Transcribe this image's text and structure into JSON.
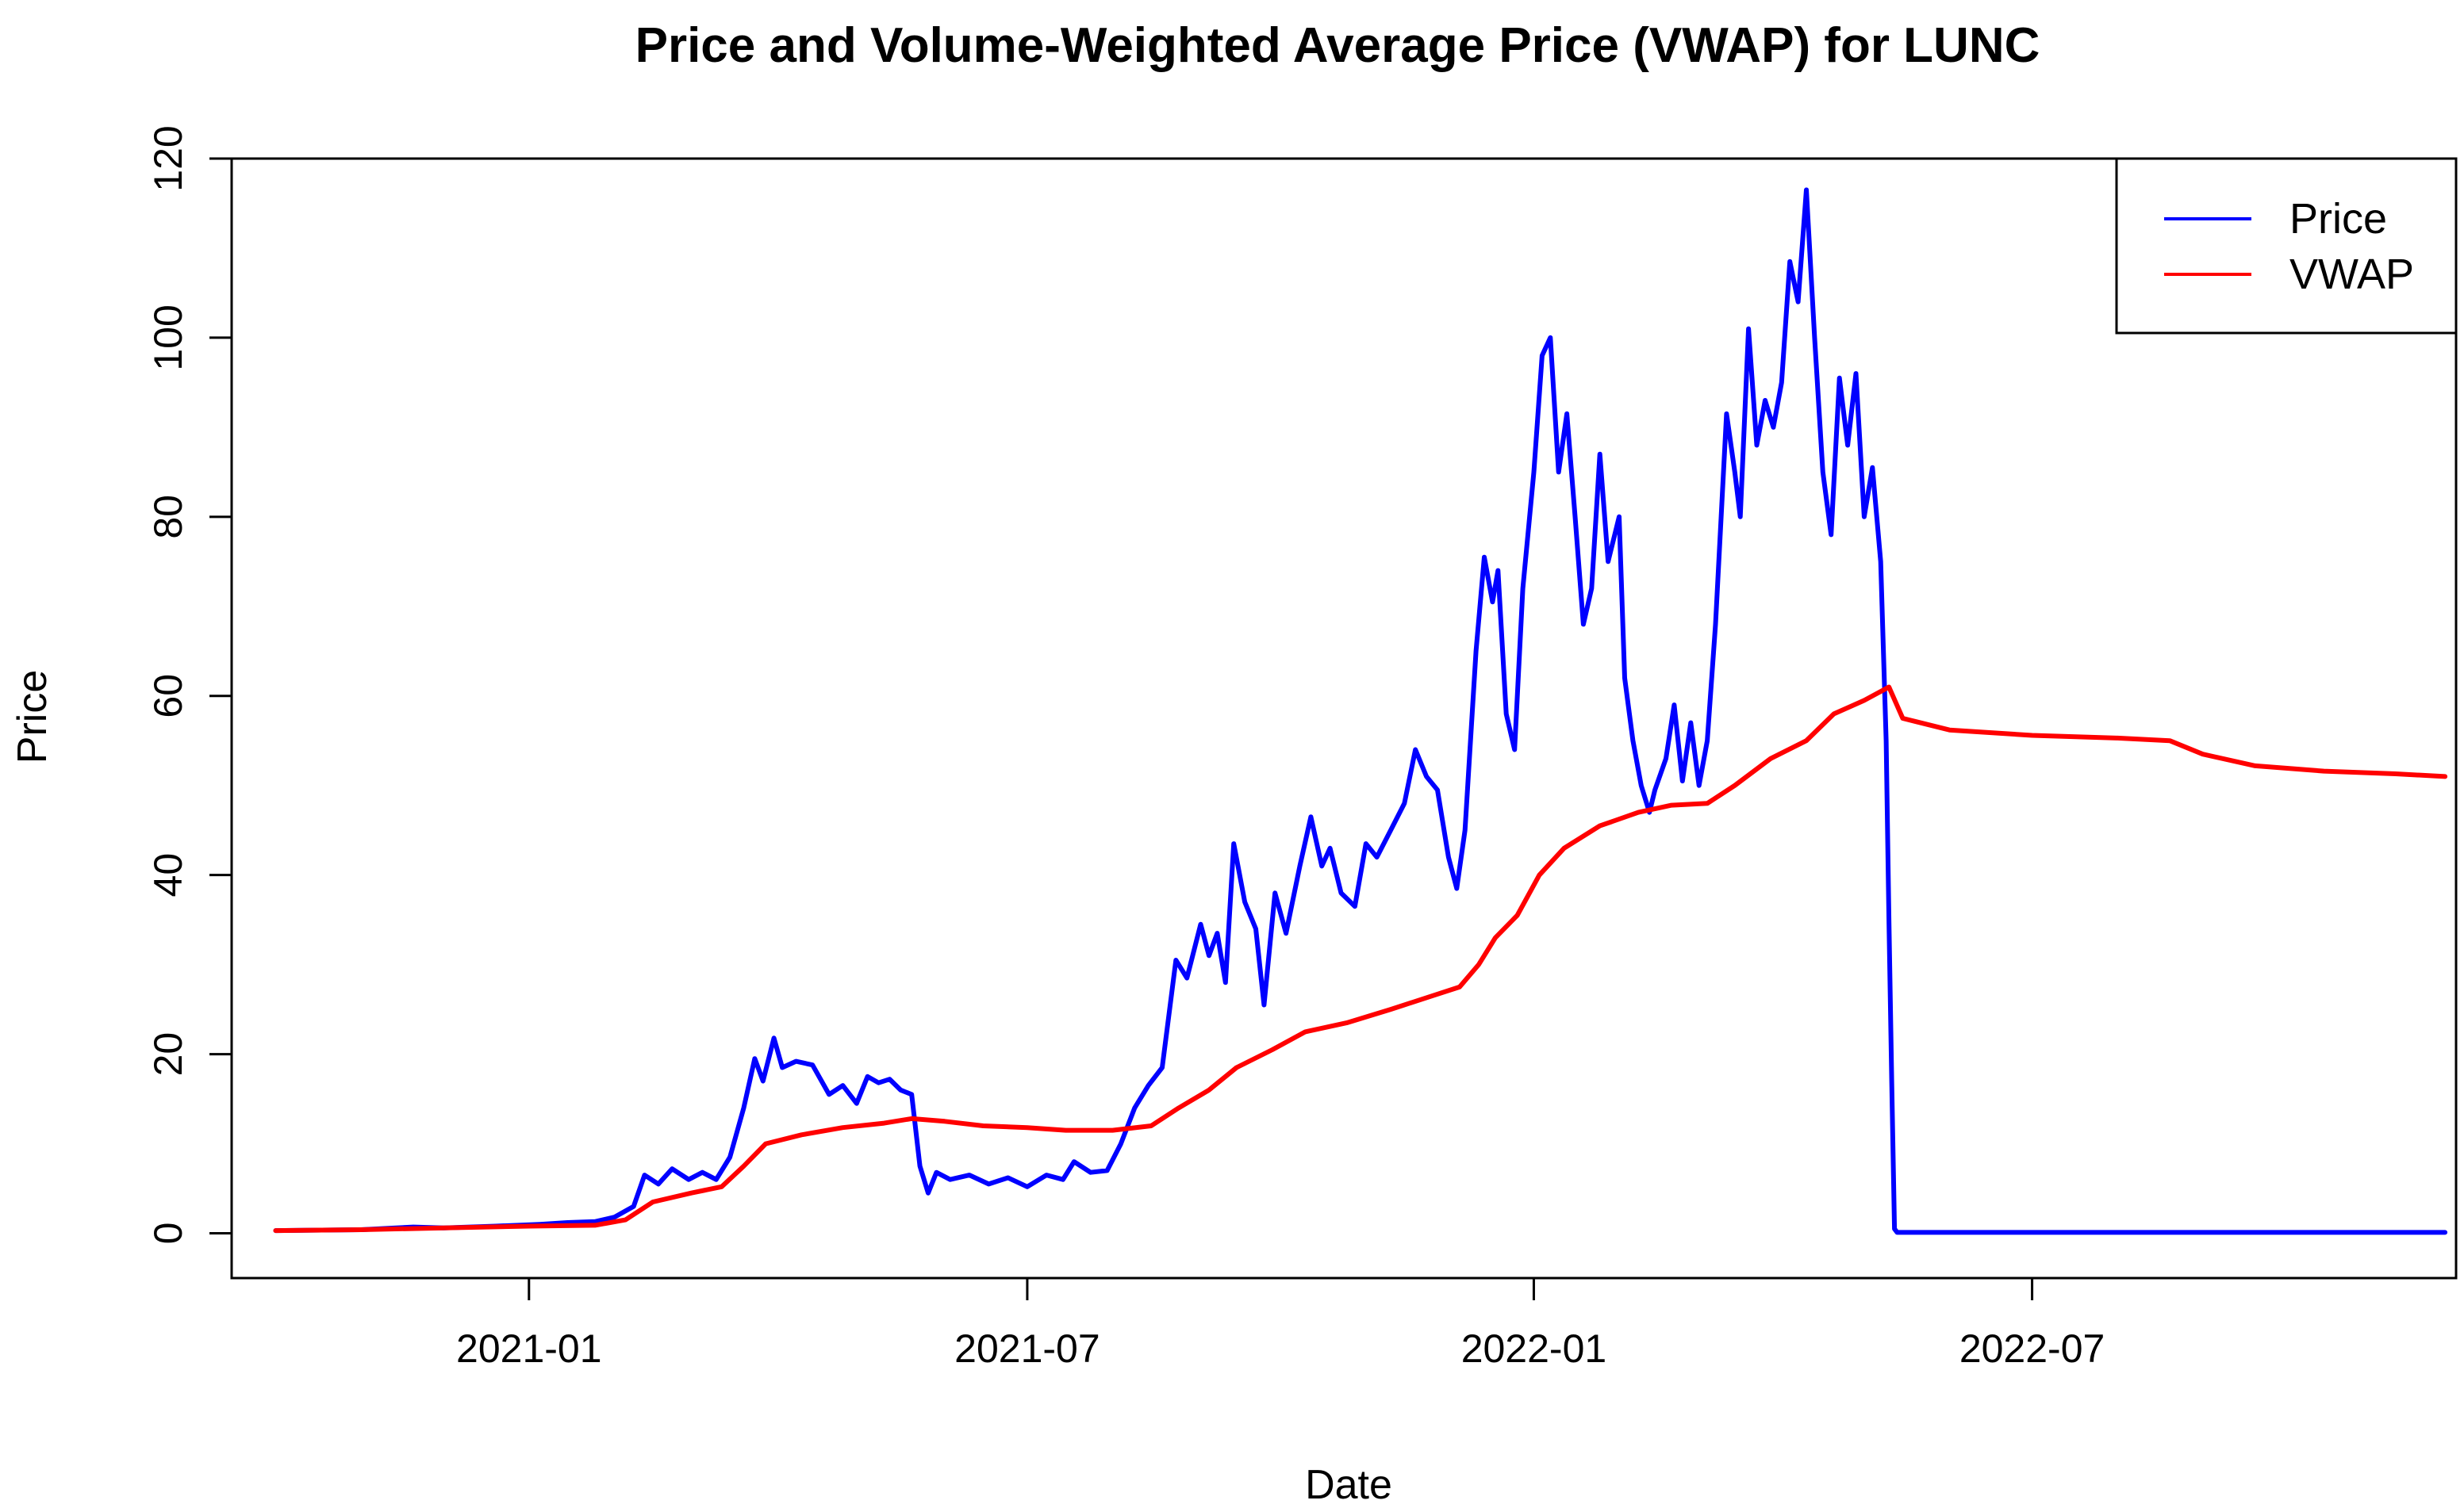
{
  "chart_data": {
    "type": "line",
    "title": "Price and Volume-Weighted Average Price (VWAP) for LUNC",
    "xlabel": "Date",
    "ylabel": "Price",
    "xlim": [
      "2020-09-15",
      "2022-12-02"
    ],
    "ylim": [
      -5,
      120
    ],
    "x_ticks": [
      {
        "date": "2021-01-01",
        "label": "2021-01"
      },
      {
        "date": "2021-07-01",
        "label": "2021-07"
      },
      {
        "date": "2022-01-01",
        "label": "2022-01"
      },
      {
        "date": "2022-07-01",
        "label": "2022-07"
      }
    ],
    "y_ticks": [
      0,
      20,
      40,
      60,
      80,
      100,
      120
    ],
    "legend": {
      "position": "top-right",
      "entries": [
        "Price",
        "VWAP"
      ]
    },
    "series": [
      {
        "name": "Price",
        "color": "#0000ff",
        "points": [
          [
            "2020-10-01",
            0.3
          ],
          [
            "2020-11-01",
            0.4
          ],
          [
            "2020-11-20",
            0.7
          ],
          [
            "2020-12-01",
            0.6
          ],
          [
            "2020-12-20",
            0.8
          ],
          [
            "2021-01-05",
            1.0
          ],
          [
            "2021-01-15",
            1.2
          ],
          [
            "2021-01-25",
            1.3
          ],
          [
            "2021-02-01",
            1.8
          ],
          [
            "2021-02-08",
            3.0
          ],
          [
            "2021-02-12",
            6.5
          ],
          [
            "2021-02-17",
            5.5
          ],
          [
            "2021-02-22",
            7.2
          ],
          [
            "2021-02-28",
            6.0
          ],
          [
            "2021-03-05",
            6.8
          ],
          [
            "2021-03-10",
            6.0
          ],
          [
            "2021-03-15",
            8.5
          ],
          [
            "2021-03-20",
            14.0
          ],
          [
            "2021-03-24",
            19.5
          ],
          [
            "2021-03-27",
            17.0
          ],
          [
            "2021-03-31",
            21.8
          ],
          [
            "2021-04-03",
            18.5
          ],
          [
            "2021-04-08",
            19.2
          ],
          [
            "2021-04-14",
            18.8
          ],
          [
            "2021-04-20",
            15.5
          ],
          [
            "2021-04-25",
            16.5
          ],
          [
            "2021-04-30",
            14.5
          ],
          [
            "2021-05-04",
            17.5
          ],
          [
            "2021-05-08",
            16.8
          ],
          [
            "2021-05-12",
            17.2
          ],
          [
            "2021-05-16",
            16.0
          ],
          [
            "2021-05-20",
            15.5
          ],
          [
            "2021-05-23",
            7.5
          ],
          [
            "2021-05-26",
            4.5
          ],
          [
            "2021-05-29",
            6.8
          ],
          [
            "2021-06-03",
            6.0
          ],
          [
            "2021-06-10",
            6.5
          ],
          [
            "2021-06-17",
            5.5
          ],
          [
            "2021-06-24",
            6.2
          ],
          [
            "2021-07-01",
            5.2
          ],
          [
            "2021-07-08",
            6.5
          ],
          [
            "2021-07-14",
            6.0
          ],
          [
            "2021-07-18",
            8.0
          ],
          [
            "2021-07-24",
            6.8
          ],
          [
            "2021-07-30",
            7.0
          ],
          [
            "2021-08-04",
            10.0
          ],
          [
            "2021-08-09",
            14.0
          ],
          [
            "2021-08-14",
            16.5
          ],
          [
            "2021-08-19",
            18.5
          ],
          [
            "2021-08-24",
            30.5
          ],
          [
            "2021-08-28",
            28.5
          ],
          [
            "2021-09-02",
            34.5
          ],
          [
            "2021-09-05",
            31.0
          ],
          [
            "2021-09-08",
            33.5
          ],
          [
            "2021-09-11",
            28.0
          ],
          [
            "2021-09-14",
            43.5
          ],
          [
            "2021-09-18",
            37.0
          ],
          [
            "2021-09-22",
            34.0
          ],
          [
            "2021-09-25",
            25.5
          ],
          [
            "2021-09-29",
            38.0
          ],
          [
            "2021-10-03",
            33.5
          ],
          [
            "2021-10-08",
            41.0
          ],
          [
            "2021-10-12",
            46.5
          ],
          [
            "2021-10-16",
            41.0
          ],
          [
            "2021-10-19",
            43.0
          ],
          [
            "2021-10-23",
            38.0
          ],
          [
            "2021-10-28",
            36.5
          ],
          [
            "2021-11-01",
            43.5
          ],
          [
            "2021-11-05",
            42.0
          ],
          [
            "2021-11-10",
            45.0
          ],
          [
            "2021-11-15",
            48.0
          ],
          [
            "2021-11-19",
            54.0
          ],
          [
            "2021-11-23",
            51.0
          ],
          [
            "2021-11-27",
            49.5
          ],
          [
            "2021-12-01",
            42.0
          ],
          [
            "2021-12-04",
            38.5
          ],
          [
            "2021-12-07",
            45.0
          ],
          [
            "2021-12-11",
            65.0
          ],
          [
            "2021-12-14",
            75.5
          ],
          [
            "2021-12-17",
            70.5
          ],
          [
            "2021-12-19",
            74.0
          ],
          [
            "2021-12-22",
            58.0
          ],
          [
            "2021-12-25",
            54.0
          ],
          [
            "2021-12-28",
            72.0
          ],
          [
            "2022-01-01",
            85.0
          ],
          [
            "2022-01-04",
            98.0
          ],
          [
            "2022-01-07",
            100.0
          ],
          [
            "2022-01-10",
            85.0
          ],
          [
            "2022-01-13",
            91.5
          ],
          [
            "2022-01-16",
            80.0
          ],
          [
            "2022-01-19",
            68.0
          ],
          [
            "2022-01-22",
            72.0
          ],
          [
            "2022-01-25",
            87.0
          ],
          [
            "2022-01-28",
            75.0
          ],
          [
            "2022-02-01",
            80.0
          ],
          [
            "2022-02-03",
            62.0
          ],
          [
            "2022-02-06",
            55.0
          ],
          [
            "2022-02-09",
            50.0
          ],
          [
            "2022-02-12",
            47.0
          ],
          [
            "2022-02-14",
            49.5
          ],
          [
            "2022-02-18",
            53.0
          ],
          [
            "2022-02-21",
            59.0
          ],
          [
            "2022-02-24",
            50.5
          ],
          [
            "2022-02-27",
            57.0
          ],
          [
            "2022-03-02",
            50.0
          ],
          [
            "2022-03-05",
            55.0
          ],
          [
            "2022-03-08",
            68.0
          ],
          [
            "2022-03-12",
            91.5
          ],
          [
            "2022-03-15",
            85.0
          ],
          [
            "2022-03-17",
            80.0
          ],
          [
            "2022-03-20",
            101.0
          ],
          [
            "2022-03-23",
            88.0
          ],
          [
            "2022-03-26",
            93.0
          ],
          [
            "2022-03-29",
            90.0
          ],
          [
            "2022-04-01",
            95.0
          ],
          [
            "2022-04-04",
            108.5
          ],
          [
            "2022-04-07",
            104.0
          ],
          [
            "2022-04-10",
            116.5
          ],
          [
            "2022-04-13",
            100.0
          ],
          [
            "2022-04-16",
            85.0
          ],
          [
            "2022-04-19",
            78.0
          ],
          [
            "2022-04-22",
            95.5
          ],
          [
            "2022-04-25",
            88.0
          ],
          [
            "2022-04-28",
            96.0
          ],
          [
            "2022-05-01",
            80.0
          ],
          [
            "2022-05-04",
            85.5
          ],
          [
            "2022-05-07",
            75.0
          ],
          [
            "2022-05-09",
            55.0
          ],
          [
            "2022-05-10",
            35.0
          ],
          [
            "2022-05-11",
            17.0
          ],
          [
            "2022-05-12",
            0.5
          ],
          [
            "2022-05-13",
            0.1
          ],
          [
            "2022-06-01",
            0.1
          ],
          [
            "2022-08-01",
            0.1
          ],
          [
            "2022-10-01",
            0.1
          ],
          [
            "2022-11-28",
            0.1
          ]
        ]
      },
      {
        "name": "VWAP",
        "color": "#ff0000",
        "points": [
          [
            "2020-10-01",
            0.3
          ],
          [
            "2020-11-01",
            0.4
          ],
          [
            "2020-12-01",
            0.6
          ],
          [
            "2021-01-01",
            0.8
          ],
          [
            "2021-01-25",
            0.9
          ],
          [
            "2021-02-05",
            1.5
          ],
          [
            "2021-02-15",
            3.5
          ],
          [
            "2021-03-01",
            4.5
          ],
          [
            "2021-03-12",
            5.2
          ],
          [
            "2021-03-20",
            7.5
          ],
          [
            "2021-03-28",
            10.0
          ],
          [
            "2021-04-10",
            11.0
          ],
          [
            "2021-04-25",
            11.8
          ],
          [
            "2021-05-10",
            12.3
          ],
          [
            "2021-05-20",
            12.8
          ],
          [
            "2021-06-01",
            12.5
          ],
          [
            "2021-06-15",
            12.0
          ],
          [
            "2021-07-01",
            11.8
          ],
          [
            "2021-07-15",
            11.5
          ],
          [
            "2021-08-01",
            11.5
          ],
          [
            "2021-08-15",
            12.0
          ],
          [
            "2021-08-25",
            14.0
          ],
          [
            "2021-09-05",
            16.0
          ],
          [
            "2021-09-15",
            18.5
          ],
          [
            "2021-09-28",
            20.5
          ],
          [
            "2021-10-10",
            22.5
          ],
          [
            "2021-10-25",
            23.5
          ],
          [
            "2021-11-10",
            25.0
          ],
          [
            "2021-11-25",
            26.5
          ],
          [
            "2021-12-05",
            27.5
          ],
          [
            "2021-12-12",
            30.0
          ],
          [
            "2021-12-18",
            33.0
          ],
          [
            "2021-12-26",
            35.5
          ],
          [
            "2022-01-03",
            40.0
          ],
          [
            "2022-01-12",
            43.0
          ],
          [
            "2022-01-25",
            45.5
          ],
          [
            "2022-02-08",
            47.0
          ],
          [
            "2022-02-20",
            47.8
          ],
          [
            "2022-03-05",
            48.0
          ],
          [
            "2022-03-15",
            50.0
          ],
          [
            "2022-03-28",
            53.0
          ],
          [
            "2022-04-10",
            55.0
          ],
          [
            "2022-04-20",
            58.0
          ],
          [
            "2022-05-01",
            59.5
          ],
          [
            "2022-05-10",
            61.0
          ],
          [
            "2022-05-15",
            57.5
          ],
          [
            "2022-06-01",
            56.2
          ],
          [
            "2022-07-01",
            55.6
          ],
          [
            "2022-08-01",
            55.3
          ],
          [
            "2022-08-20",
            55.0
          ],
          [
            "2022-09-01",
            53.5
          ],
          [
            "2022-09-20",
            52.2
          ],
          [
            "2022-10-15",
            51.6
          ],
          [
            "2022-11-10",
            51.3
          ],
          [
            "2022-11-28",
            51.0
          ]
        ]
      }
    ]
  }
}
